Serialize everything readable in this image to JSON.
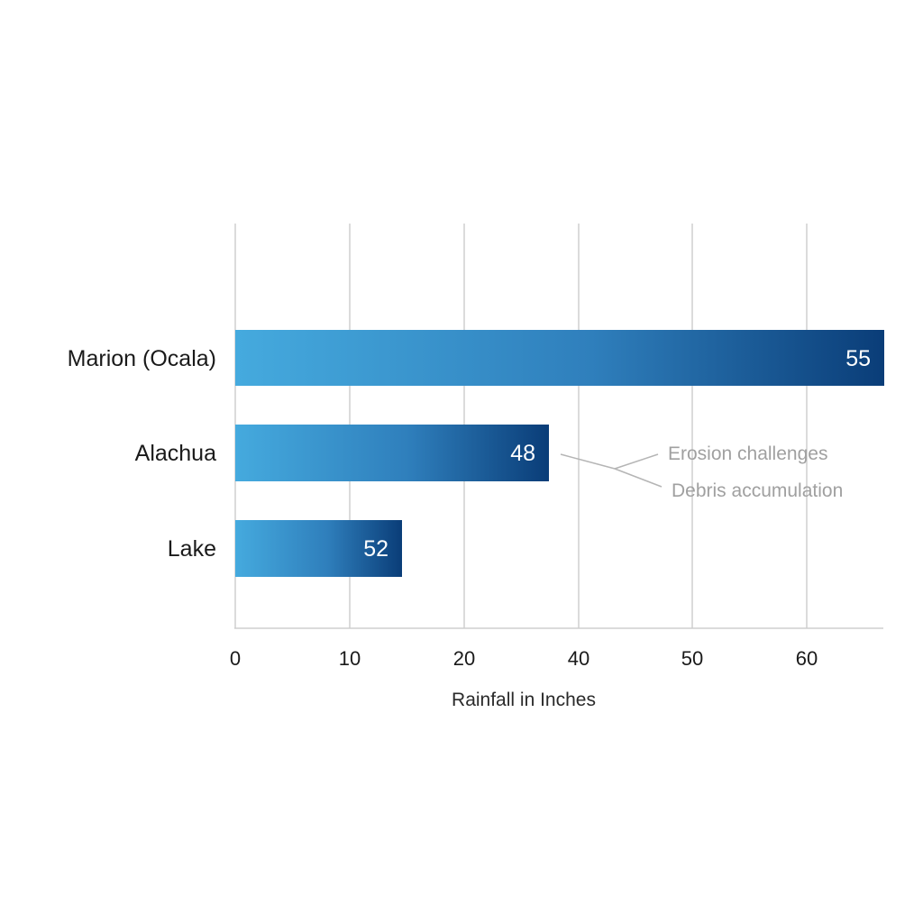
{
  "chart_data": {
    "type": "bar",
    "orientation": "horizontal",
    "categories": [
      "Marion (Ocala)",
      "Alachua",
      "Lake"
    ],
    "values": [
      55,
      48,
      52
    ],
    "value_labels": [
      "55",
      "48",
      "52"
    ],
    "x_ticks": [
      "0",
      "10",
      "20",
      "40",
      "50",
      "60"
    ],
    "xlabel": "Rainfall in Inches",
    "ylabel": "",
    "title": "",
    "grid": true,
    "annotations": [
      "Erosion challenges",
      "Debris accumulation"
    ],
    "colors": {
      "bar_start": "#45aade",
      "bar_end": "#0a3d78",
      "grid": "#cfcfcf",
      "annotation": "#a0a0a0"
    }
  }
}
